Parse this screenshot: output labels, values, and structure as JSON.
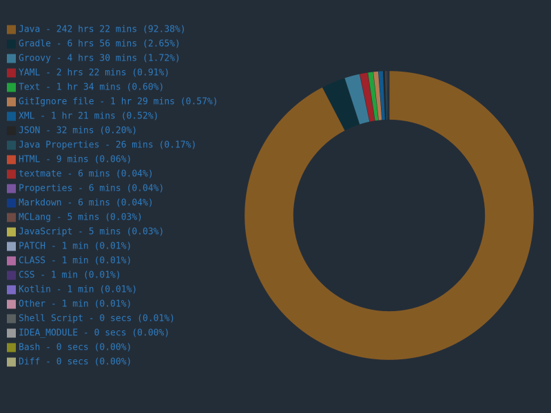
{
  "chart_data": {
    "type": "donut",
    "categories": [
      "Java - 242 hrs 22 mins (92.38%)",
      "Gradle - 6 hrs 56 mins (2.65%)",
      "Groovy - 4 hrs 30 mins (1.72%)",
      "YAML - 2 hrs 22 mins (0.91%)",
      "Text - 1 hr 34 mins (0.60%)",
      "GitIgnore file - 1 hr 29 mins (0.57%)",
      "XML - 1 hr 21 mins (0.52%)",
      "JSON - 32 mins (0.20%)",
      "Java Properties - 26 mins (0.17%)",
      "HTML - 9 mins (0.06%)",
      "textmate - 6 mins (0.04%)",
      "Properties - 6 mins (0.04%)",
      "Markdown - 6 mins (0.04%)",
      "MCLang - 5 mins (0.03%)",
      "JavaScript - 5 mins (0.03%)",
      "PATCH - 1 min (0.01%)",
      "CLASS - 1 min (0.01%)",
      "CSS - 1 min (0.01%)",
      "Kotlin - 1 min (0.01%)",
      "Other - 1 min (0.01%)",
      "Shell Script - 0 secs (0.01%)",
      "IDEA_MODULE - 0 secs (0.00%)",
      "Bash - 0 secs (0.00%)",
      "Diff - 0 secs (0.00%)"
    ],
    "values": [
      92.38,
      2.65,
      1.72,
      0.91,
      0.6,
      0.57,
      0.52,
      0.2,
      0.17,
      0.06,
      0.04,
      0.04,
      0.04,
      0.03,
      0.03,
      0.01,
      0.01,
      0.01,
      0.01,
      0.01,
      0.01,
      0.0,
      0.0,
      0.0
    ],
    "colors": [
      "#855b24",
      "#0d2e38",
      "#3b7a96",
      "#a0222a",
      "#22a23c",
      "#b57b50",
      "#105a8f",
      "#252525",
      "#24505e",
      "#c24a30",
      "#a52a2a",
      "#7a559f",
      "#123b87",
      "#6e4a44",
      "#b5b04a",
      "#8fa0bd",
      "#b06aa0",
      "#4a3572",
      "#7b6ac4",
      "#c08aa0",
      "#5a6060",
      "#9a9a9a",
      "#8a8a20",
      "#a8a878"
    ]
  }
}
